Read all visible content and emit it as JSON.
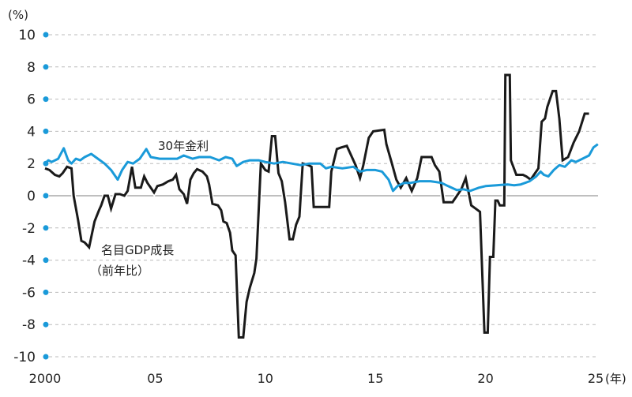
{
  "chart_data": {
    "type": "line",
    "title": "",
    "unit_label": "(%)",
    "xlabel": "",
    "ylabel": "",
    "x_unit_suffix": "(年)",
    "ylim": [
      -10,
      10
    ],
    "xlim": [
      2000,
      2025
    ],
    "grid": true,
    "y_ticks": [
      10,
      8,
      6,
      4,
      2,
      0,
      -2,
      -4,
      -6,
      -8,
      -10
    ],
    "y_tick_labels": [
      "10",
      "8",
      "6",
      "4",
      "2",
      "0",
      "-2",
      "-4",
      "-6",
      "-8",
      "-10"
    ],
    "x_ticks": [
      2000,
      2005,
      2010,
      2015,
      2020,
      2025
    ],
    "x_tick_labels": [
      "2000",
      "05",
      "10",
      "15",
      "20",
      "25"
    ],
    "colors": {
      "bond": "#1a9ad9",
      "gdp": "#1a1a1a",
      "axis_dot": "#1a9ad9",
      "grid": "#bbbbbb",
      "zero_line": "#999999"
    },
    "series": [
      {
        "name": "30年金利",
        "color": "#1a9ad9",
        "points": [
          [
            2000.0,
            2.0
          ],
          [
            2000.15,
            2.2
          ],
          [
            2000.3,
            2.1
          ],
          [
            2000.6,
            2.3
          ],
          [
            2000.85,
            2.95
          ],
          [
            2001.05,
            2.2
          ],
          [
            2001.2,
            2.0
          ],
          [
            2001.4,
            2.3
          ],
          [
            2001.6,
            2.2
          ],
          [
            2001.8,
            2.4
          ],
          [
            2002.1,
            2.6
          ],
          [
            2002.4,
            2.3
          ],
          [
            2002.7,
            2.0
          ],
          [
            2003.0,
            1.6
          ],
          [
            2003.3,
            1.0
          ],
          [
            2003.5,
            1.6
          ],
          [
            2003.75,
            2.1
          ],
          [
            2004.0,
            2.0
          ],
          [
            2004.3,
            2.3
          ],
          [
            2004.6,
            2.9
          ],
          [
            2004.8,
            2.4
          ],
          [
            2005.2,
            2.3
          ],
          [
            2005.6,
            2.3
          ],
          [
            2006.0,
            2.3
          ],
          [
            2006.3,
            2.5
          ],
          [
            2006.7,
            2.3
          ],
          [
            2007.0,
            2.4
          ],
          [
            2007.5,
            2.4
          ],
          [
            2007.9,
            2.2
          ],
          [
            2008.2,
            2.4
          ],
          [
            2008.5,
            2.3
          ],
          [
            2008.7,
            1.85
          ],
          [
            2009.0,
            2.1
          ],
          [
            2009.3,
            2.2
          ],
          [
            2009.7,
            2.2
          ],
          [
            2010.0,
            2.1
          ],
          [
            2010.4,
            2.0
          ],
          [
            2010.8,
            2.1
          ],
          [
            2011.2,
            2.0
          ],
          [
            2011.6,
            1.9
          ],
          [
            2012.0,
            2.0
          ],
          [
            2012.5,
            2.0
          ],
          [
            2012.75,
            1.7
          ],
          [
            2013.0,
            1.8
          ],
          [
            2013.5,
            1.7
          ],
          [
            2014.0,
            1.8
          ],
          [
            2014.3,
            1.5
          ],
          [
            2014.6,
            1.6
          ],
          [
            2015.0,
            1.6
          ],
          [
            2015.3,
            1.5
          ],
          [
            2015.6,
            1.0
          ],
          [
            2015.8,
            0.3
          ],
          [
            2016.0,
            0.6
          ],
          [
            2016.3,
            0.8
          ],
          [
            2016.6,
            0.8
          ],
          [
            2017.0,
            0.9
          ],
          [
            2017.5,
            0.9
          ],
          [
            2018.0,
            0.8
          ],
          [
            2018.3,
            0.6
          ],
          [
            2018.7,
            0.35
          ],
          [
            2019.0,
            0.4
          ],
          [
            2019.3,
            0.3
          ],
          [
            2019.7,
            0.5
          ],
          [
            2020.0,
            0.6
          ],
          [
            2020.5,
            0.65
          ],
          [
            2021.0,
            0.7
          ],
          [
            2021.3,
            0.65
          ],
          [
            2021.6,
            0.7
          ],
          [
            2022.0,
            0.9
          ],
          [
            2022.3,
            1.2
          ],
          [
            2022.5,
            1.5
          ],
          [
            2022.65,
            1.3
          ],
          [
            2022.85,
            1.2
          ],
          [
            2023.1,
            1.6
          ],
          [
            2023.35,
            1.9
          ],
          [
            2023.6,
            1.8
          ],
          [
            2023.9,
            2.2
          ],
          [
            2024.1,
            2.1
          ],
          [
            2024.4,
            2.3
          ],
          [
            2024.7,
            2.5
          ],
          [
            2024.9,
            3.0
          ],
          [
            2025.1,
            3.2
          ]
        ]
      },
      {
        "name": "名目GDP成長（前年比）",
        "color": "#1a1a1a",
        "points": [
          [
            2000.0,
            1.7
          ],
          [
            2000.2,
            1.6
          ],
          [
            2000.45,
            1.3
          ],
          [
            2000.65,
            1.2
          ],
          [
            2000.8,
            1.4
          ],
          [
            2001.0,
            1.8
          ],
          [
            2001.2,
            1.7
          ],
          [
            2001.3,
            0.0
          ],
          [
            2001.5,
            -1.5
          ],
          [
            2001.65,
            -2.8
          ],
          [
            2001.8,
            -2.9
          ],
          [
            2002.0,
            -3.2
          ],
          [
            2002.25,
            -1.6
          ],
          [
            2002.45,
            -0.9
          ],
          [
            2002.55,
            -0.6
          ],
          [
            2002.7,
            0.0
          ],
          [
            2002.85,
            0.0
          ],
          [
            2003.0,
            -0.8
          ],
          [
            2003.2,
            0.1
          ],
          [
            2003.4,
            0.1
          ],
          [
            2003.6,
            0.0
          ],
          [
            2003.75,
            0.3
          ],
          [
            2003.95,
            1.8
          ],
          [
            2004.1,
            0.5
          ],
          [
            2004.35,
            0.5
          ],
          [
            2004.5,
            1.2
          ],
          [
            2004.65,
            0.8
          ],
          [
            2004.95,
            0.2
          ],
          [
            2005.1,
            0.6
          ],
          [
            2005.35,
            0.7
          ],
          [
            2005.6,
            0.9
          ],
          [
            2005.8,
            1.0
          ],
          [
            2005.95,
            1.3
          ],
          [
            2006.1,
            0.4
          ],
          [
            2006.3,
            0.1
          ],
          [
            2006.45,
            -0.5
          ],
          [
            2006.6,
            1.0
          ],
          [
            2006.75,
            1.4
          ],
          [
            2006.9,
            1.65
          ],
          [
            2007.15,
            1.5
          ],
          [
            2007.35,
            1.2
          ],
          [
            2007.45,
            0.7
          ],
          [
            2007.6,
            -0.5
          ],
          [
            2007.85,
            -0.6
          ],
          [
            2008.0,
            -0.9
          ],
          [
            2008.1,
            -1.6
          ],
          [
            2008.25,
            -1.7
          ],
          [
            2008.4,
            -2.3
          ],
          [
            2008.5,
            -3.4
          ],
          [
            2008.65,
            -3.7
          ],
          [
            2008.8,
            -8.8
          ],
          [
            2009.0,
            -8.8
          ],
          [
            2009.15,
            -6.6
          ],
          [
            2009.3,
            -5.7
          ],
          [
            2009.5,
            -4.8
          ],
          [
            2009.6,
            -3.9
          ],
          [
            2009.8,
            2.0
          ],
          [
            2010.0,
            1.6
          ],
          [
            2010.15,
            1.5
          ],
          [
            2010.3,
            3.7
          ],
          [
            2010.45,
            3.7
          ],
          [
            2010.6,
            1.4
          ],
          [
            2010.75,
            0.9
          ],
          [
            2010.9,
            -0.4
          ],
          [
            2011.1,
            -2.7
          ],
          [
            2011.25,
            -2.7
          ],
          [
            2011.4,
            -1.8
          ],
          [
            2011.55,
            -1.3
          ],
          [
            2011.7,
            2.0
          ],
          [
            2011.95,
            1.9
          ],
          [
            2012.1,
            1.8
          ],
          [
            2012.2,
            -0.7
          ],
          [
            2012.9,
            -0.7
          ],
          [
            2013.0,
            1.5
          ],
          [
            2013.25,
            2.9
          ],
          [
            2013.45,
            3.0
          ],
          [
            2013.7,
            3.1
          ],
          [
            2014.1,
            1.9
          ],
          [
            2014.3,
            1.1
          ],
          [
            2014.45,
            1.9
          ],
          [
            2014.7,
            3.6
          ],
          [
            2014.9,
            4.0
          ],
          [
            2015.4,
            4.1
          ],
          [
            2015.5,
            3.2
          ],
          [
            2015.75,
            2.0
          ],
          [
            2015.95,
            1.0
          ],
          [
            2016.15,
            0.5
          ],
          [
            2016.4,
            1.1
          ],
          [
            2016.65,
            0.3
          ],
          [
            2016.9,
            1.1
          ],
          [
            2017.1,
            2.4
          ],
          [
            2017.55,
            2.4
          ],
          [
            2017.7,
            1.9
          ],
          [
            2017.9,
            1.5
          ],
          [
            2018.1,
            -0.4
          ],
          [
            2018.5,
            -0.4
          ],
          [
            2018.7,
            0.0
          ],
          [
            2018.9,
            0.4
          ],
          [
            2019.1,
            1.1
          ],
          [
            2019.35,
            -0.6
          ],
          [
            2019.55,
            -0.8
          ],
          [
            2019.75,
            -1.0
          ],
          [
            2019.95,
            -8.5
          ],
          [
            2020.1,
            -8.5
          ],
          [
            2020.2,
            -3.8
          ],
          [
            2020.35,
            -3.8
          ],
          [
            2020.45,
            -0.3
          ],
          [
            2020.55,
            -0.3
          ],
          [
            2020.65,
            -0.6
          ],
          [
            2020.85,
            -0.6
          ],
          [
            2020.9,
            7.5
          ],
          [
            2021.1,
            7.5
          ],
          [
            2021.15,
            2.2
          ],
          [
            2021.4,
            1.3
          ],
          [
            2021.7,
            1.3
          ],
          [
            2021.85,
            1.2
          ],
          [
            2022.05,
            1.0
          ],
          [
            2022.2,
            1.3
          ],
          [
            2022.4,
            1.7
          ],
          [
            2022.55,
            4.6
          ],
          [
            2022.7,
            4.8
          ],
          [
            2022.8,
            5.5
          ],
          [
            2023.05,
            6.5
          ],
          [
            2023.2,
            6.5
          ],
          [
            2023.35,
            4.8
          ],
          [
            2023.5,
            2.2
          ],
          [
            2023.75,
            2.4
          ],
          [
            2024.0,
            3.3
          ],
          [
            2024.25,
            4.0
          ],
          [
            2024.5,
            5.1
          ],
          [
            2024.7,
            5.1
          ]
        ]
      }
    ],
    "annotations": [
      {
        "text": "30年金利",
        "series": "30年金利"
      },
      {
        "text": "名目GDP成長",
        "series": "名目GDP成長（前年比）"
      },
      {
        "text": "（前年比）",
        "series": "名目GDP成長（前年比）"
      }
    ]
  }
}
